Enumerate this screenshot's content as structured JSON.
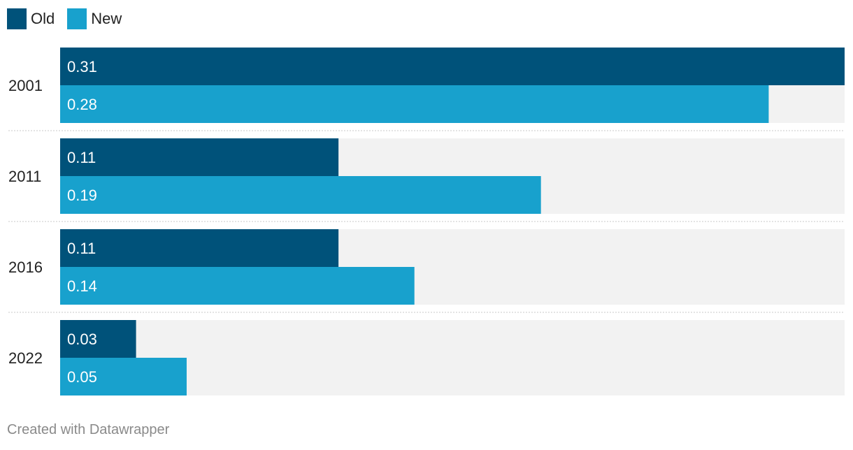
{
  "legend": [
    {
      "label": "Old",
      "color": "#00527a"
    },
    {
      "label": "New",
      "color": "#18a1cd"
    }
  ],
  "footer": "Created with Datawrapper",
  "chart_data": {
    "type": "bar",
    "orientation": "horizontal",
    "categories": [
      "2001",
      "2011",
      "2016",
      "2022"
    ],
    "series": [
      {
        "name": "Old",
        "values": [
          0.31,
          0.11,
          0.11,
          0.03
        ],
        "labels": [
          "0.31",
          "0.11",
          "0.11",
          "0.03"
        ],
        "color": "#00527a"
      },
      {
        "name": "New",
        "values": [
          0.28,
          0.19,
          0.14,
          0.05
        ],
        "labels": [
          "0.28",
          "0.19",
          "0.14",
          "0.05"
        ],
        "color": "#18a1cd"
      }
    ],
    "xlim": [
      0,
      0.31
    ],
    "background_color": "#f2f2f2",
    "grid": false,
    "legend_position": "top-left"
  }
}
